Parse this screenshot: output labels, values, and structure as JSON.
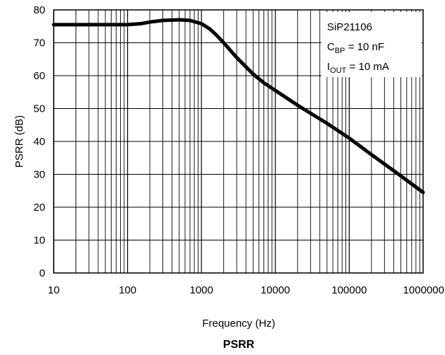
{
  "chart_data": {
    "type": "line",
    "title": "PSRR",
    "xlabel": "Frequency (Hz)",
    "ylabel": "PSRR (dB)",
    "x_scale": "log",
    "xlim": [
      10,
      1000000
    ],
    "ylim": [
      0,
      80
    ],
    "x_ticks": [
      10,
      100,
      1000,
      10000,
      100000,
      1000000
    ],
    "x_tick_labels": [
      "10",
      "100",
      "1000",
      "10000",
      "100000",
      "1000000"
    ],
    "y_ticks": [
      0,
      10,
      20,
      30,
      40,
      50,
      60,
      70,
      80
    ],
    "y_tick_labels": [
      "0",
      "10",
      "20",
      "30",
      "40",
      "50",
      "60",
      "70",
      "80"
    ],
    "grid": true,
    "line_color": "#000000",
    "series": [
      {
        "x": [
          10,
          20,
          50,
          100,
          150,
          200,
          300,
          500,
          700,
          1000,
          1300,
          1600,
          2000,
          3000,
          5000,
          7000,
          10000,
          20000,
          50000,
          100000,
          200000,
          500000,
          1000000
        ],
        "y": [
          75.5,
          75.5,
          75.5,
          75.5,
          75.8,
          76.3,
          76.8,
          77.0,
          76.8,
          75.8,
          74.2,
          72.3,
          70.0,
          65.5,
          60.5,
          57.8,
          55.5,
          51.0,
          45.5,
          41.0,
          36.0,
          29.5,
          24.5
        ]
      }
    ],
    "annotation": {
      "line1": "SiP21106",
      "line2_main": "C",
      "line2_sub": "BP",
      "line2_rest": " = 10 nF",
      "line3_main": "I",
      "line3_sub": "OUT",
      "line3_rest": " = 10 mA"
    }
  }
}
